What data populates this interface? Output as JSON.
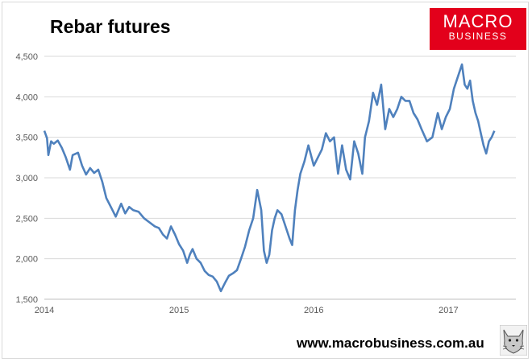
{
  "logo": {
    "line1": "MACRO",
    "line2": "BUSINESS"
  },
  "footer": {
    "url": "www.macrobusiness.com.au"
  },
  "icons": {
    "footer_image": "lynx-logo-icon"
  },
  "colors": {
    "line": "#4f81bd",
    "logo_bg": "#e3001b",
    "grid": "#d9d9d9"
  },
  "chart_data": {
    "type": "line",
    "title": "Rebar futures",
    "xlabel": "",
    "ylabel": "",
    "xlim": [
      2014.0,
      2017.5
    ],
    "ylim": [
      1500,
      4500
    ],
    "y_ticks": [
      1500,
      2000,
      2500,
      3000,
      3500,
      4000,
      4500
    ],
    "y_tick_labels": [
      "1,500",
      "2,000",
      "2,500",
      "3,000",
      "3,500",
      "4,000",
      "4,500"
    ],
    "x_ticks": [
      2014,
      2015,
      2016,
      2017
    ],
    "x_tick_labels": [
      "2014",
      "2015",
      "2016",
      "2017"
    ],
    "grid": true,
    "legend": "none",
    "series": [
      {
        "x": [
          2014.0,
          2014.02,
          2014.03,
          2014.05,
          2014.07,
          2014.1,
          2014.13,
          2014.16,
          2014.19,
          2014.21,
          2014.25,
          2014.28,
          2014.31,
          2014.34,
          2014.37,
          2014.4,
          2014.43,
          2014.46,
          2014.5,
          2014.53,
          2014.55,
          2014.57,
          2014.6,
          2014.63,
          2014.66,
          2014.7,
          2014.74,
          2014.78,
          2014.82,
          2014.85,
          2014.88,
          2014.91,
          2014.94,
          2014.97,
          2015.0,
          2015.03,
          2015.06,
          2015.08,
          2015.1,
          2015.13,
          2015.16,
          2015.19,
          2015.22,
          2015.25,
          2015.28,
          2015.31,
          2015.34,
          2015.37,
          2015.4,
          2015.43,
          2015.46,
          2015.49,
          2015.52,
          2015.55,
          2015.58,
          2015.61,
          2015.63,
          2015.65,
          2015.67,
          2015.69,
          2015.71,
          2015.73,
          2015.76,
          2015.79,
          2015.82,
          2015.84,
          2015.86,
          2015.88,
          2015.9,
          2015.93,
          2015.96,
          2016.0,
          2016.03,
          2016.06,
          2016.09,
          2016.12,
          2016.15,
          2016.18,
          2016.21,
          2016.24,
          2016.27,
          2016.3,
          2016.33,
          2016.36,
          2016.38,
          2016.41,
          2016.44,
          2016.47,
          2016.5,
          2016.53,
          2016.56,
          2016.59,
          2016.62,
          2016.65,
          2016.68,
          2016.71,
          2016.74,
          2016.77,
          2016.8,
          2016.84,
          2016.88,
          2016.92,
          2016.95,
          2016.98,
          2017.01,
          2017.04,
          2017.07,
          2017.1,
          2017.12,
          2017.14,
          2017.16,
          2017.18,
          2017.2,
          2017.22,
          2017.24,
          2017.26,
          2017.28,
          2017.3,
          2017.32,
          2017.34
        ],
        "y": [
          3580,
          3490,
          3280,
          3450,
          3420,
          3460,
          3370,
          3250,
          3100,
          3280,
          3310,
          3150,
          3040,
          3120,
          3060,
          3100,
          2950,
          2750,
          2620,
          2520,
          2600,
          2680,
          2560,
          2640,
          2600,
          2580,
          2500,
          2450,
          2400,
          2380,
          2300,
          2250,
          2400,
          2300,
          2180,
          2100,
          1950,
          2050,
          2120,
          2000,
          1950,
          1850,
          1800,
          1780,
          1720,
          1600,
          1700,
          1790,
          1820,
          1860,
          2000,
          2150,
          2350,
          2500,
          2850,
          2600,
          2100,
          1950,
          2050,
          2350,
          2500,
          2600,
          2550,
          2400,
          2250,
          2170,
          2600,
          2850,
          3050,
          3200,
          3400,
          3150,
          3250,
          3350,
          3550,
          3450,
          3500,
          3050,
          3400,
          3100,
          2980,
          3450,
          3300,
          3050,
          3500,
          3700,
          4050,
          3900,
          4150,
          3600,
          3850,
          3750,
          3850,
          4000,
          3950,
          3950,
          3800,
          3720,
          3600,
          3450,
          3500,
          3800,
          3600,
          3750,
          3850,
          4100,
          4250,
          4400,
          4150,
          4100,
          4200,
          3950,
          3800,
          3700,
          3550,
          3400,
          3300,
          3450,
          3500,
          3580
        ]
      }
    ]
  }
}
